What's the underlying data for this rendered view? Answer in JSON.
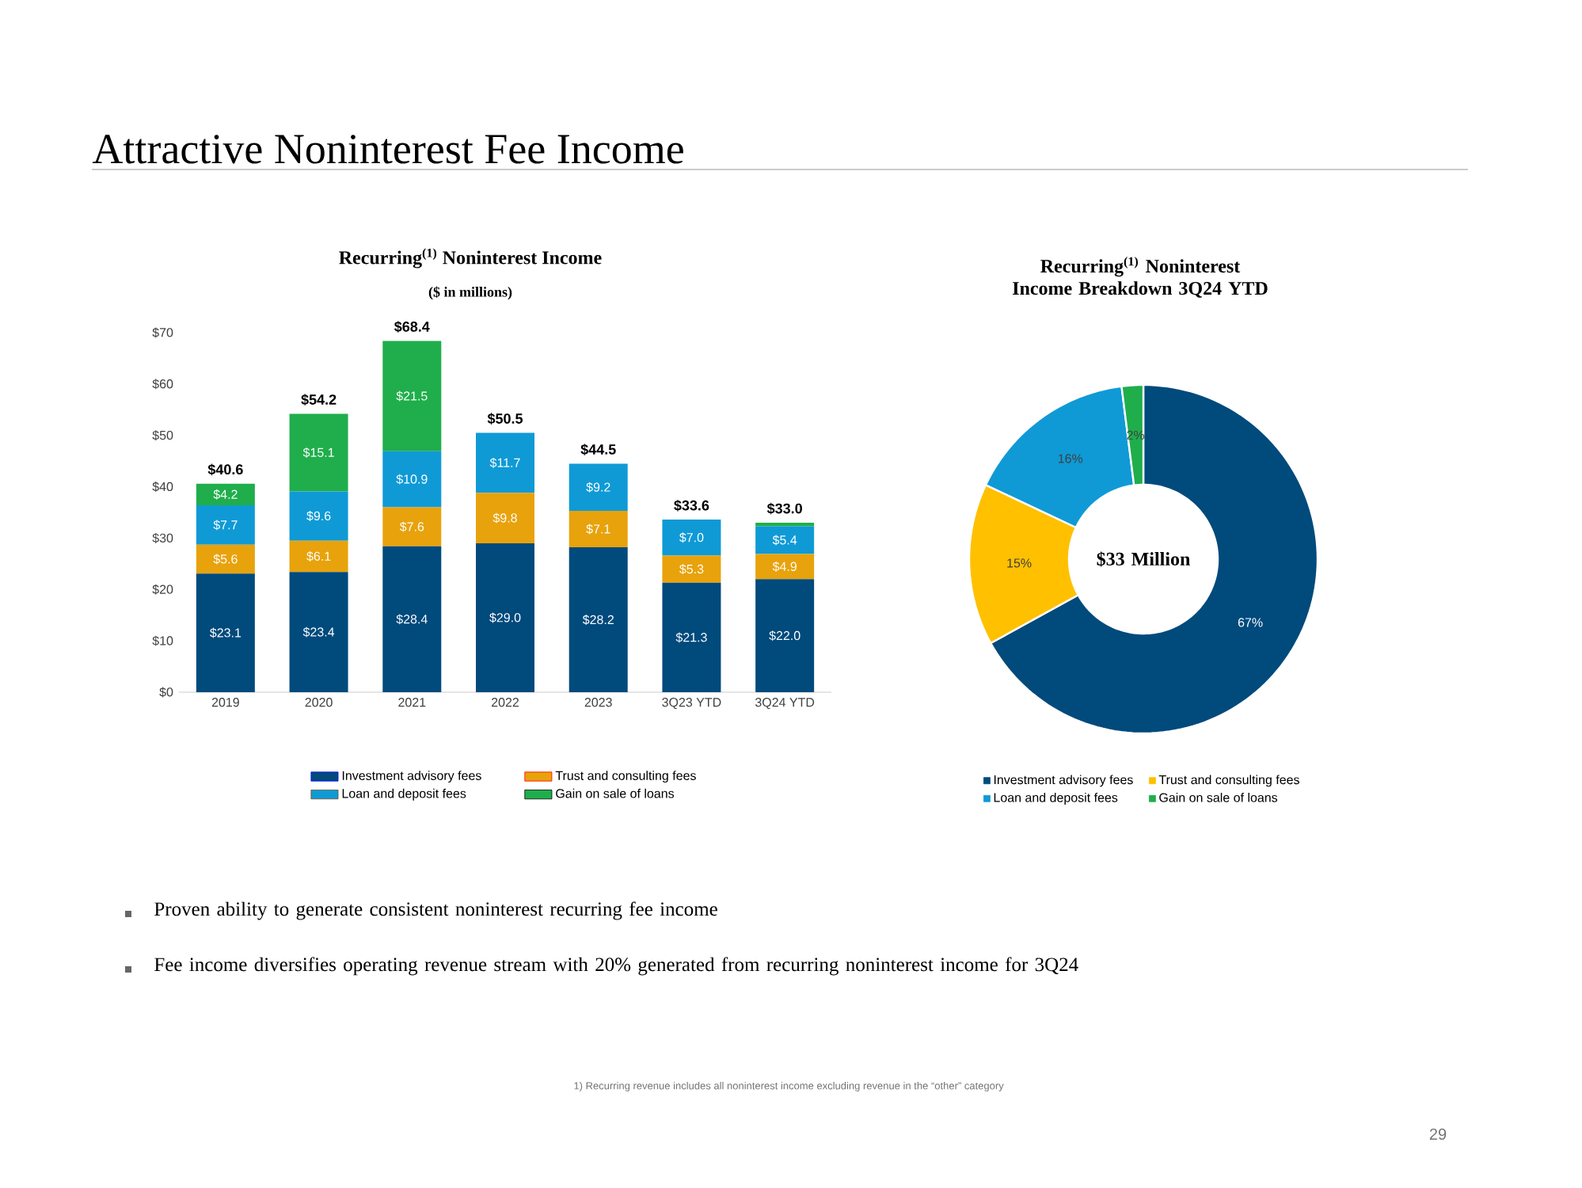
{
  "chart_data": [
    {
      "type": "bar",
      "stacked": true,
      "title": "Recurring$^{(1)}$ Noninterest Income",
      "subtitle": "($ in millions)",
      "categories": [
        "2019",
        "2020",
        "2021",
        "2022",
        "2023",
        "3Q23 YTD",
        "3Q24 YTD"
      ],
      "series": [
        {
          "name": "Investment advisory fees",
          "color": "#004a7c",
          "values": [
            23.1,
            23.4,
            28.4,
            29.0,
            28.2,
            21.3,
            22.0
          ],
          "value_labels": [
            "$23.1",
            "$23.4",
            "$28.4",
            "$29.0",
            "$28.2",
            "$21.3",
            "$22.0"
          ]
        },
        {
          "name": "Trust and consulting fees",
          "color": "#e8a20c",
          "values": [
            5.6,
            6.1,
            7.6,
            9.8,
            7.1,
            5.3,
            4.9
          ],
          "value_labels": [
            "$5.6",
            "$6.1",
            "$7.6",
            "$9.8",
            "$7.1",
            "$5.3",
            "$4.9"
          ]
        },
        {
          "name": "Loan and deposit fees",
          "color": "#0f9ad6",
          "values": [
            7.7,
            9.6,
            10.9,
            11.7,
            9.2,
            7.0,
            5.4
          ],
          "value_labels": [
            "$7.7",
            "$9.6",
            "$10.9",
            "$11.7",
            "$9.2",
            "$7.0",
            "$5.4"
          ]
        },
        {
          "name": "Gain on sale of loans",
          "color": "#1fae4b",
          "values": [
            4.2,
            15.1,
            21.5,
            null,
            null,
            null,
            0.7
          ],
          "value_labels": [
            "$4.2",
            "$15.1",
            "$21.5",
            null,
            null,
            null,
            null
          ]
        }
      ],
      "totals": [
        "$40.6",
        "$54.2",
        "$68.4",
        "$50.5",
        "$44.5",
        "$33.6",
        "$33.0"
      ],
      "ylim": [
        0,
        70
      ],
      "yticks": [
        {
          "value": 0,
          "label": "$0"
        },
        {
          "value": 10,
          "label": "$10"
        },
        {
          "value": 20,
          "label": "$20"
        },
        {
          "value": 30,
          "label": "$30"
        },
        {
          "value": 40,
          "label": "$40"
        },
        {
          "value": 50,
          "label": "$50"
        },
        {
          "value": 60,
          "label": "$60"
        },
        {
          "value": 70,
          "label": "$70"
        }
      ],
      "grid": false,
      "legend": "bottom"
    },
    {
      "type": "donut",
      "title": "Recurring$^{(1)}$ Noninterest Income Breakdown 3Q24 YTD",
      "categories": [
        "Investment advisory fees",
        "Trust and consulting fees",
        "Loan and deposit fees",
        "Gain on sale of loans"
      ],
      "values": [
        67,
        15,
        16,
        2
      ],
      "value_labels": [
        "67%",
        "15%",
        "16%",
        "2%"
      ],
      "colors": [
        "#004a7c",
        "#ffc000",
        "#0f9ad6",
        "#1fae4b"
      ],
      "annotations": [
        "$33 Million"
      ],
      "legend": "bottom"
    },
    {
      "type": "other",
      "title": "Attractive Noninterest Fee Income",
      "annotations": [
        "Proven ability to generate consistent noninterest recurring fee income",
        "Fee income diversifies operating revenue stream with 20% generated from recurring noninterest income for 3Q24",
        "1)    Recurring revenue includes all noninterest income excluding revenue in the “other” category",
        "29"
      ]
    }
  ]
}
